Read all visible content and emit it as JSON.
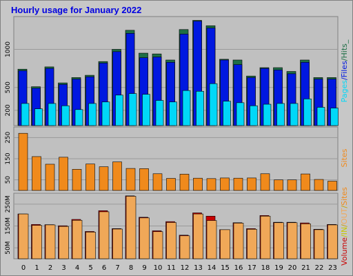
{
  "title": "Hourly usage for January 2022",
  "colors": {
    "background": "#c7c7c7",
    "panel": "#c0c0c0",
    "hits": "#1e6e45",
    "files": "#0018e0",
    "pages": "#00d8f8",
    "sites": "#f08a1c",
    "kbin": "#c80000",
    "kbout": "#f0a858"
  },
  "chart_data": [
    {
      "type": "bar",
      "panel": "hits-files-pages",
      "categories": [
        "0",
        "1",
        "2",
        "3",
        "4",
        "5",
        "6",
        "7",
        "8",
        "9",
        "10",
        "11",
        "12",
        "13",
        "14",
        "15",
        "16",
        "17",
        "18",
        "19",
        "20",
        "21",
        "22",
        "23"
      ],
      "yticks": [
        200,
        500,
        1000
      ],
      "ylim": [
        0,
        1430
      ],
      "series": [
        {
          "name": "Hits",
          "color": "#1e6e45",
          "values": [
            740,
            510,
            770,
            560,
            630,
            660,
            840,
            1000,
            1250,
            950,
            940,
            860,
            1260,
            1380,
            1310,
            870,
            860,
            650,
            760,
            760,
            710,
            860,
            630,
            630
          ]
        },
        {
          "name": "Files",
          "color": "#0018e0",
          "values": [
            720,
            490,
            750,
            540,
            610,
            640,
            820,
            970,
            1210,
            890,
            900,
            830,
            1200,
            1370,
            1280,
            860,
            800,
            630,
            750,
            730,
            680,
            830,
            610,
            610
          ]
        },
        {
          "name": "Pages",
          "color": "#00d8f8",
          "values": [
            290,
            220,
            290,
            260,
            210,
            290,
            310,
            400,
            420,
            410,
            330,
            310,
            460,
            450,
            550,
            320,
            300,
            260,
            280,
            290,
            290,
            350,
            240,
            230
          ]
        }
      ],
      "legend": [
        "Pages",
        "/",
        "Files",
        "/",
        "Hits",
        "_"
      ]
    },
    {
      "type": "bar",
      "panel": "sites",
      "categories": [
        "0",
        "1",
        "2",
        "3",
        "4",
        "5",
        "6",
        "7",
        "8",
        "9",
        "10",
        "11",
        "12",
        "13",
        "14",
        "15",
        "16",
        "17",
        "18",
        "19",
        "20",
        "21",
        "22",
        "23"
      ],
      "yticks": [
        50,
        150,
        250
      ],
      "ylim": [
        0,
        300
      ],
      "series": [
        {
          "name": "Sites",
          "color": "#f08a1c",
          "values": [
            270,
            160,
            124,
            157,
            100,
            125,
            112,
            135,
            104,
            103,
            79,
            57,
            77,
            58,
            56,
            59,
            58,
            59,
            79,
            50,
            50,
            78,
            52,
            44
          ]
        }
      ],
      "legend": [
        "Sites"
      ]
    },
    {
      "type": "bar",
      "panel": "volume",
      "categories": [
        "0",
        "1",
        "2",
        "3",
        "4",
        "5",
        "6",
        "7",
        "8",
        "9",
        "10",
        "11",
        "12",
        "13",
        "14",
        "15",
        "16",
        "17",
        "18",
        "19",
        "20",
        "21",
        "22",
        "23"
      ],
      "yticks": [
        "50M",
        "150M",
        "250M"
      ],
      "ylim": [
        0,
        300
      ],
      "series": [
        {
          "name": "OUT",
          "color": "#c80000",
          "values": [
            205,
            157,
            156,
            151,
            180,
            125,
            220,
            138,
            288,
            190,
            128,
            170,
            108,
            210,
            195,
            133,
            165,
            138,
            198,
            167,
            167,
            164,
            135,
            157
          ]
        },
        {
          "name": "IN",
          "color": "#f0a858",
          "values": [
            205,
            153,
            155,
            148,
            176,
            122,
            215,
            136,
            286,
            187,
            124,
            166,
            105,
            205,
            175,
            133,
            163,
            135,
            195,
            165,
            165,
            160,
            133,
            155
          ]
        }
      ],
      "legend": [
        "Volume",
        "/",
        "IN",
        "/",
        "OUT",
        "/",
        "Sites"
      ]
    }
  ]
}
